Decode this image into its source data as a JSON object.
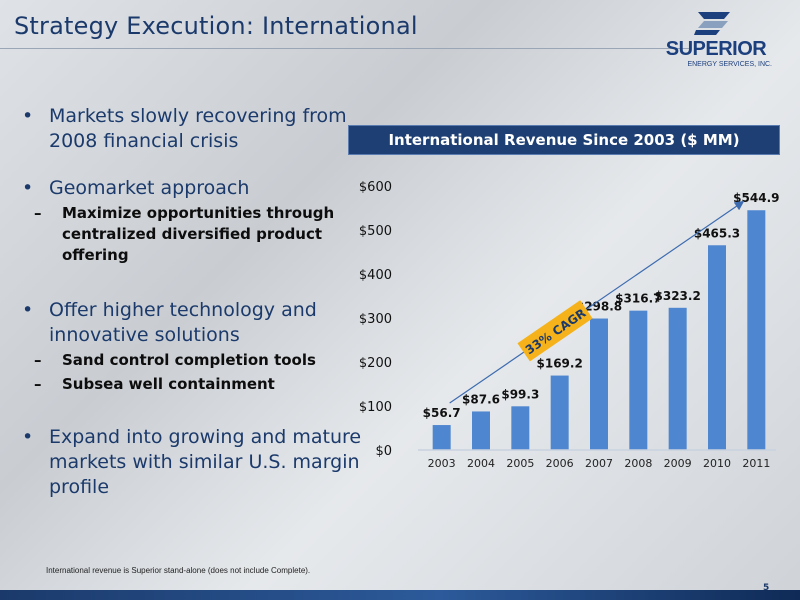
{
  "slide": {
    "title": "Strategy Execution: International",
    "page_number": "5",
    "footnote": "International revenue is Superior stand-alone (does not include Complete)."
  },
  "logo": {
    "name": "SUPERIOR",
    "subtitle": "ENERGY SERVICES, INC."
  },
  "bullets": [
    {
      "text": "Markets slowly recovering from 2008 financial crisis",
      "subs": []
    },
    {
      "text": "Geomarket approach",
      "subs": [
        "Maximize opportunities through centralized diversified product offering"
      ]
    },
    {
      "text": "Offer higher technology and innovative solutions",
      "subs": [
        "Sand control completion tools",
        "Subsea well containment"
      ]
    },
    {
      "text": "Expand into growing and mature markets with similar U.S. margin profile",
      "subs": []
    }
  ],
  "chart_data": {
    "type": "bar",
    "title": "International Revenue Since 2003 ($ MM)",
    "categories": [
      "2003",
      "2004",
      "2005",
      "2006",
      "2007",
      "2008",
      "2009",
      "2010",
      "2011"
    ],
    "values": [
      56.7,
      87.6,
      99.3,
      169.2,
      298.8,
      316.7,
      323.2,
      465.3,
      544.9
    ],
    "data_labels": [
      "$56.7",
      "$87.6",
      "$99.3",
      "$169.2",
      "$298.8",
      "$316.7",
      "$323.2",
      "$465.3",
      "$544.9"
    ],
    "y_ticks": [
      0,
      100,
      200,
      300,
      400,
      500,
      600
    ],
    "y_tick_labels": [
      "$0",
      "$100",
      "$200",
      "$300",
      "$400",
      "$500",
      "$600"
    ],
    "ylim": [
      0,
      600
    ],
    "xlabel": "",
    "ylabel": "",
    "grid": false,
    "bar_color": "#4f86d0",
    "annotation": {
      "text": "33% CAGR",
      "color": "#f5b21b"
    }
  }
}
